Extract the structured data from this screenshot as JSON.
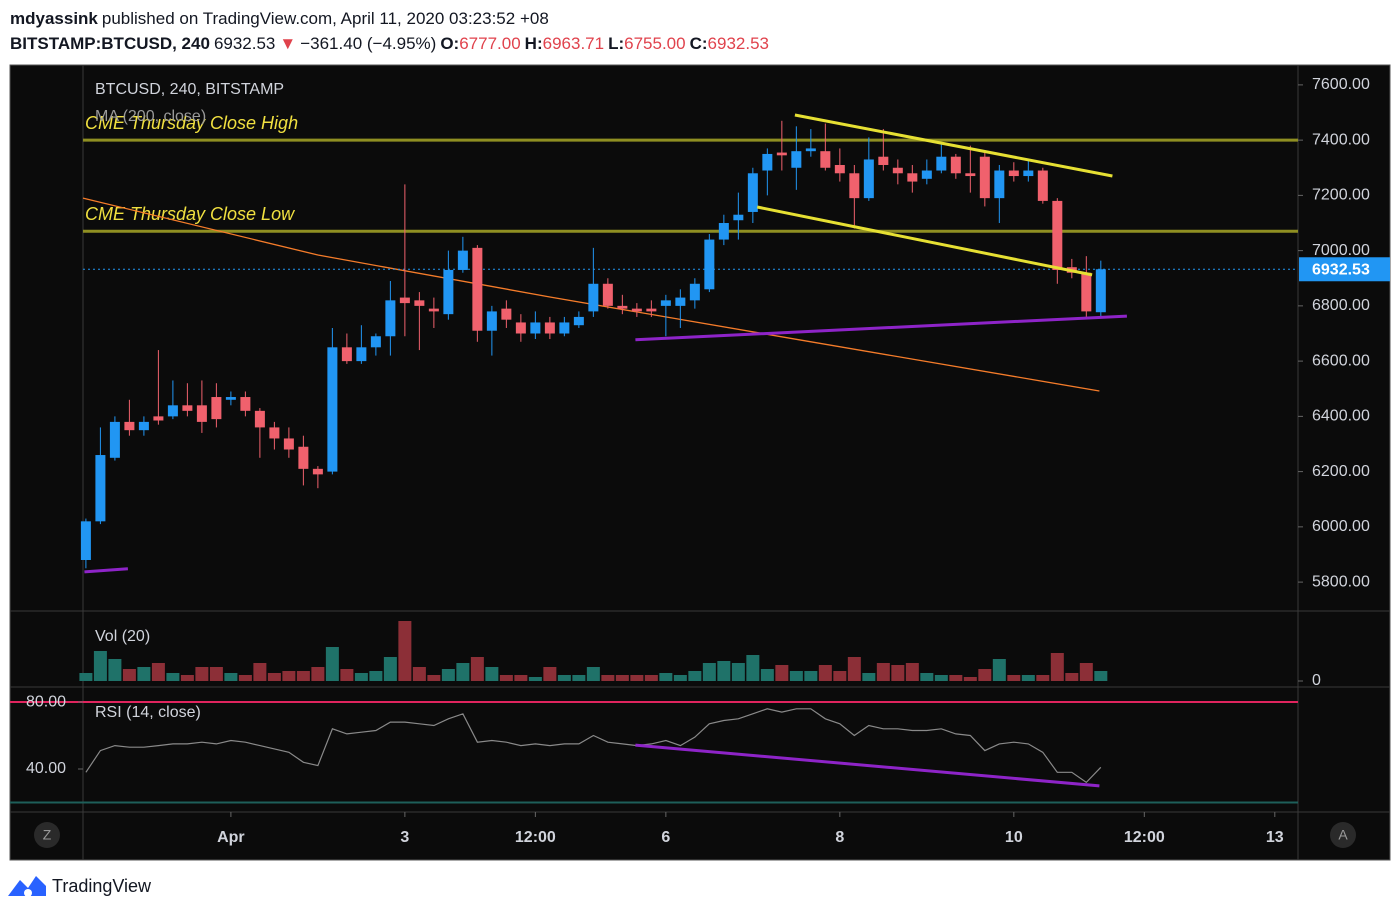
{
  "chart_data": {
    "type": "candlestick",
    "header": {
      "user": "mdyassink",
      "published": "published on TradingView.com, April 11, 2020 03:23:52 +08",
      "symbol": "BITSTAMP:BTCUSD, 240",
      "price": "6932.53",
      "change": "−361.40 (−4.95%)",
      "o_label": "O:",
      "o": "6777.00",
      "h_label": "H:",
      "h": "6963.71",
      "l_label": "L:",
      "l": "6755.00",
      "c_label": "C:",
      "c": "6932.53"
    },
    "title": "BTCUSD, 240, BITSTAMP",
    "ma_label": "MA (200, close)",
    "up_color": "#2196f3",
    "down_color": "#f0616d",
    "open": [
      5880,
      6020,
      6250,
      6380,
      6350,
      6400,
      6400,
      6440,
      6440,
      6470,
      6460,
      6470,
      6420,
      6360,
      6320,
      6290,
      6210,
      6200,
      6650,
      6600,
      6650,
      6690,
      6830,
      6820,
      6790,
      6770,
      6930,
      7010,
      6710,
      6790,
      6740,
      6700,
      6740,
      6700,
      6730,
      6780,
      6880,
      6800,
      6790,
      6790,
      6800,
      6800,
      6820,
      6860,
      7040,
      7110,
      7140,
      7290,
      7355,
      7300,
      7360,
      7360,
      7310,
      7280,
      7190,
      7340,
      7300,
      7280,
      7260,
      7290,
      7340,
      7280,
      7340,
      7190,
      7290,
      7270,
      7290,
      7180,
      6940,
      6920,
      6777
    ],
    "high": [
      6030,
      6360,
      6400,
      6460,
      6400,
      6640,
      6530,
      6520,
      6530,
      6520,
      6490,
      6490,
      6430,
      6380,
      6360,
      6330,
      6220,
      6720,
      6700,
      6730,
      6700,
      6890,
      7240,
      6850,
      6830,
      7000,
      7050,
      7020,
      6800,
      6820,
      6770,
      6780,
      6760,
      6760,
      6780,
      7010,
      6900,
      6840,
      6810,
      6820,
      6840,
      6860,
      6900,
      7060,
      7130,
      7210,
      7300,
      7370,
      7470,
      7450,
      7440,
      7460,
      7370,
      7310,
      7410,
      7440,
      7330,
      7310,
      7330,
      7390,
      7350,
      7380,
      7360,
      7310,
      7320,
      7330,
      7300,
      7190,
      6970,
      6980,
      6963.71
    ],
    "low": [
      5850,
      6010,
      6240,
      6330,
      6330,
      6370,
      6390,
      6400,
      6340,
      6360,
      6440,
      6400,
      6250,
      6280,
      6250,
      6150,
      6140,
      6190,
      6590,
      6590,
      6620,
      6620,
      6690,
      6640,
      6720,
      6750,
      6920,
      6670,
      6620,
      6720,
      6670,
      6680,
      6680,
      6690,
      6720,
      6760,
      6790,
      6770,
      6760,
      6760,
      6690,
      6720,
      6790,
      6850,
      7020,
      7040,
      7100,
      7200,
      7290,
      7220,
      7340,
      7290,
      7250,
      7080,
      7180,
      7290,
      7240,
      7210,
      7240,
      7280,
      7260,
      7210,
      7160,
      7100,
      7250,
      7250,
      7170,
      6880,
      6900,
      6760,
      6755
    ],
    "close": [
      6020,
      6260,
      6380,
      6350,
      6380,
      6385,
      6440,
      6420,
      6380,
      6390,
      6470,
      6420,
      6360,
      6320,
      6280,
      6210,
      6190,
      6650,
      6600,
      6650,
      6690,
      6820,
      6810,
      6800,
      6780,
      6930,
      7000,
      6710,
      6780,
      6750,
      6700,
      6740,
      6700,
      6740,
      6760,
      6880,
      6800,
      6790,
      6780,
      6780,
      6820,
      6830,
      6880,
      7040,
      7100,
      7130,
      7280,
      7350,
      7345,
      7360,
      7370,
      7300,
      7280,
      7190,
      7330,
      7310,
      7280,
      7250,
      7290,
      7340,
      7280,
      7270,
      7190,
      7290,
      7270,
      7290,
      7180,
      6930,
      6920,
      6780,
      6932.53
    ],
    "xlim": [
      -0.2,
      83.6
    ],
    "xticks": [
      {
        "value": 10,
        "label": "Apr"
      },
      {
        "value": 22,
        "label": "3"
      },
      {
        "value": 31,
        "label": "12:00"
      },
      {
        "value": 40,
        "label": "6"
      },
      {
        "value": 52,
        "label": "8"
      },
      {
        "value": 64,
        "label": "10"
      },
      {
        "value": 73,
        "label": "12:00"
      },
      {
        "value": 82,
        "label": "13"
      }
    ],
    "ylim": [
      5699,
      7672
    ],
    "yticks": [
      {
        "value": 5800,
        "label": "5800.00"
      },
      {
        "value": 6000,
        "label": "6000.00"
      },
      {
        "value": 6200,
        "label": "6200.00"
      },
      {
        "value": 6400,
        "label": "6400.00"
      },
      {
        "value": 6600,
        "label": "6600.00"
      },
      {
        "value": 6800,
        "label": "6800.00"
      },
      {
        "value": 7000,
        "label": "7000.00"
      },
      {
        "value": 7200,
        "label": "7200.00"
      },
      {
        "value": 7400,
        "label": "7400.00"
      },
      {
        "value": 7600,
        "label": "7600.00"
      }
    ],
    "last_price": 6932.53,
    "last_price_color": "#2196f3",
    "ma": {
      "color": "#f57c2a",
      "points": [
        [
          -0.2,
          7190
        ],
        [
          16.0,
          6984
        ],
        [
          32.0,
          6832
        ],
        [
          49.2,
          6677
        ],
        [
          69.9,
          6492
        ]
      ]
    },
    "levels": [
      {
        "label": "CME Thursday Close High",
        "value": 7400,
        "color": "#8f8f22",
        "text_color": "#f0e040"
      },
      {
        "label": "CME Thursday Close Low",
        "value": 7070,
        "color": "#8f8f22",
        "text_color": "#f0e040"
      }
    ],
    "trendlines": [
      {
        "color": "#e6e033",
        "points": [
          [
            48.9,
            7491
          ],
          [
            70.8,
            7270
          ]
        ]
      },
      {
        "color": "#e6e033",
        "points": [
          [
            46.3,
            7158
          ],
          [
            69.4,
            6912
          ]
        ]
      },
      {
        "color": "#8e24c8",
        "points": [
          [
            37.9,
            6677
          ],
          [
            71.8,
            6763
          ]
        ]
      },
      {
        "color": "#8e24c8",
        "points": [
          [
            -0.1,
            5837
          ],
          [
            2.9,
            5848
          ]
        ]
      }
    ],
    "volume": {
      "label": "Vol (20)",
      "up_color": "#1f7269",
      "down_color": "#8c2f37",
      "values": [
        8,
        30,
        22,
        12,
        14,
        18,
        8,
        6,
        14,
        14,
        8,
        6,
        18,
        8,
        10,
        10,
        14,
        34,
        12,
        8,
        10,
        24,
        60,
        14,
        6,
        12,
        18,
        24,
        14,
        6,
        6,
        4,
        14,
        6,
        6,
        14,
        6,
        6,
        6,
        6,
        8,
        6,
        10,
        18,
        20,
        18,
        26,
        12,
        16,
        10,
        10,
        16,
        10,
        24,
        8,
        18,
        16,
        18,
        8,
        6,
        6,
        4,
        12,
        22,
        6,
        6,
        6,
        28,
        8,
        18,
        10
      ],
      "ylim": [
        0,
        66
      ],
      "yticks": [
        0
      ]
    },
    "rsi": {
      "label": "RSI (14, close)",
      "color": "#8a8a8a",
      "values": [
        38,
        51,
        54,
        53,
        53,
        54,
        55,
        55,
        56,
        55,
        57,
        56,
        54,
        52,
        50,
        44,
        42,
        64,
        61,
        62,
        63,
        68,
        68,
        67,
        66,
        70,
        73,
        56,
        57,
        56,
        54,
        55,
        54,
        55,
        55,
        60,
        56,
        55,
        54,
        55,
        57,
        54,
        59,
        67,
        69,
        70,
        73,
        76,
        74,
        76,
        76,
        70,
        67,
        60,
        66,
        64,
        64,
        63,
        63,
        64,
        61,
        60,
        51,
        55,
        56,
        55,
        50,
        38,
        38,
        32,
        41
      ],
      "ylim": [
        14.3,
        88.4
      ],
      "yticks": [
        {
          "value": 80,
          "label": "80.00"
        },
        {
          "value": 40,
          "label": "40.00"
        }
      ],
      "bands": [
        {
          "value": 80,
          "color": "#e0245e"
        },
        {
          "value": 20,
          "color": "#1e5f5a"
        }
      ],
      "trendline": {
        "color": "#8e24c8",
        "points": [
          [
            37.9,
            54.3
          ],
          [
            69.9,
            29.9
          ]
        ]
      }
    },
    "footer": {
      "brand": "TradingView",
      "left_button": "Z",
      "right_button": "A"
    }
  }
}
